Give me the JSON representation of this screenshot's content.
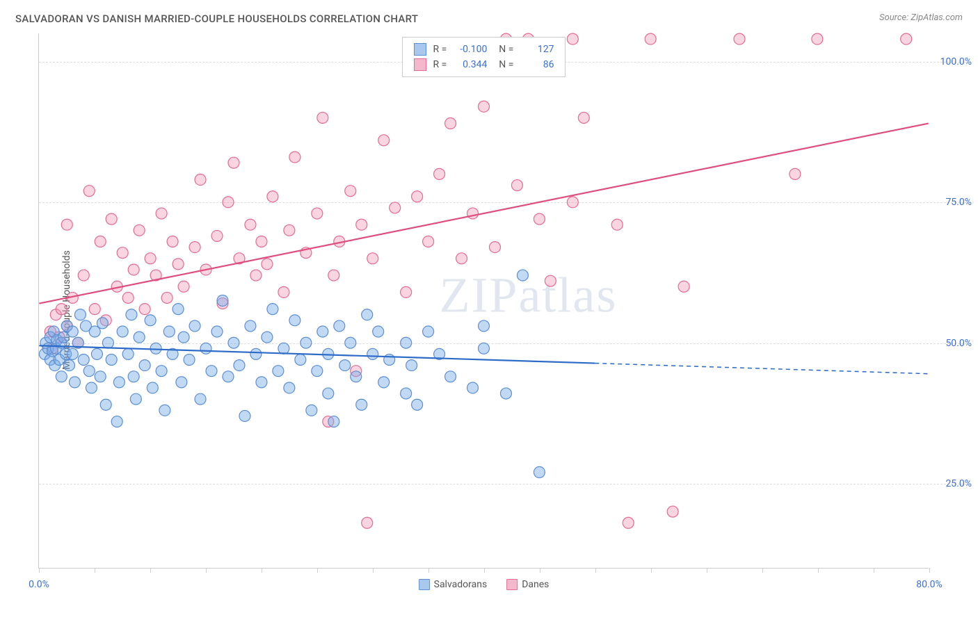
{
  "title": "SALVADORAN VS DANISH MARRIED-COUPLE HOUSEHOLDS CORRELATION CHART",
  "source": "Source: ZipAtlas.com",
  "y_axis_label": "Married-couple Households",
  "watermark": "ZIPatlas",
  "chart": {
    "type": "scatter",
    "background_color": "#ffffff",
    "grid_color": "#dddddd",
    "axis_color": "#cccccc",
    "text_color": "#555555",
    "value_color": "#3b6fd4",
    "xlim": [
      0,
      80
    ],
    "ylim": [
      10,
      105
    ],
    "x_ticks": [
      0,
      5,
      10,
      15,
      20,
      25,
      30,
      35,
      40,
      45,
      50,
      55,
      60,
      65,
      70,
      75,
      80
    ],
    "x_tick_labels": {
      "0": "0.0%",
      "80": "80.0%"
    },
    "y_ticks": [
      25,
      50,
      75,
      100
    ],
    "y_tick_labels": {
      "25": "25.0%",
      "50": "50.0%",
      "75": "75.0%",
      "100": "100.0%"
    },
    "marker_radius": 8,
    "marker_stroke_width": 1.2,
    "line_width": 2.2
  },
  "series": {
    "salvadorans": {
      "label": "Salvadorans",
      "fill": "rgba(120,170,230,0.45)",
      "stroke": "#5a8fd4",
      "line_color": "#2d6bc9",
      "swatch_fill": "#a8c8ed",
      "swatch_border": "#5a8fd4",
      "r": "-0.100",
      "n": "127",
      "trend": {
        "x1": 0,
        "y1": 49.5,
        "x2": 80,
        "y2": 44.5,
        "solid_until_x": 50
      },
      "points": [
        [
          0.5,
          48
        ],
        [
          0.6,
          50
        ],
        [
          0.8,
          49
        ],
        [
          1,
          47
        ],
        [
          1,
          51
        ],
        [
          1.2,
          48.5
        ],
        [
          1.3,
          52
        ],
        [
          1.4,
          46
        ],
        [
          1.5,
          49
        ],
        [
          1.6,
          50.5
        ],
        [
          1.8,
          47
        ],
        [
          2,
          50
        ],
        [
          2,
          44
        ],
        [
          2.2,
          51
        ],
        [
          2.4,
          48
        ],
        [
          2.5,
          53
        ],
        [
          2.7,
          46
        ],
        [
          3,
          52
        ],
        [
          3,
          48
        ],
        [
          3.2,
          43
        ],
        [
          3.5,
          50
        ],
        [
          3.7,
          55
        ],
        [
          4,
          47
        ],
        [
          4.2,
          53
        ],
        [
          4.5,
          45
        ],
        [
          4.7,
          42
        ],
        [
          5,
          52
        ],
        [
          5.2,
          48
        ],
        [
          5.5,
          44
        ],
        [
          5.7,
          53.5
        ],
        [
          6,
          39
        ],
        [
          6.2,
          50
        ],
        [
          6.5,
          47
        ],
        [
          7,
          36
        ],
        [
          7.2,
          43
        ],
        [
          7.5,
          52
        ],
        [
          8,
          48
        ],
        [
          8.3,
          55
        ],
        [
          8.5,
          44
        ],
        [
          8.7,
          40
        ],
        [
          9,
          51
        ],
        [
          9.5,
          46
        ],
        [
          10,
          54
        ],
        [
          10.2,
          42
        ],
        [
          10.5,
          49
        ],
        [
          11,
          45
        ],
        [
          11.3,
          38
        ],
        [
          11.7,
          52
        ],
        [
          12,
          48
        ],
        [
          12.5,
          56
        ],
        [
          12.8,
          43
        ],
        [
          13,
          51
        ],
        [
          13.5,
          47
        ],
        [
          14,
          53
        ],
        [
          14.5,
          40
        ],
        [
          15,
          49
        ],
        [
          15.5,
          45
        ],
        [
          16,
          52
        ],
        [
          16.5,
          57.5
        ],
        [
          17,
          44
        ],
        [
          17.5,
          50
        ],
        [
          18,
          46
        ],
        [
          18.5,
          37
        ],
        [
          19,
          53
        ],
        [
          19.5,
          48
        ],
        [
          20,
          43
        ],
        [
          20.5,
          51
        ],
        [
          21,
          56
        ],
        [
          21.5,
          45
        ],
        [
          22,
          49
        ],
        [
          22.5,
          42
        ],
        [
          23,
          54
        ],
        [
          23.5,
          47
        ],
        [
          24,
          50
        ],
        [
          24.5,
          38
        ],
        [
          25,
          45
        ],
        [
          25.5,
          52
        ],
        [
          26,
          48
        ],
        [
          26,
          41
        ],
        [
          26.5,
          36
        ],
        [
          27,
          53
        ],
        [
          27.5,
          46
        ],
        [
          28,
          50
        ],
        [
          28.5,
          44
        ],
        [
          29,
          39
        ],
        [
          29.5,
          55
        ],
        [
          30,
          48
        ],
        [
          30.5,
          52
        ],
        [
          31,
          43
        ],
        [
          31.5,
          47
        ],
        [
          33,
          50
        ],
        [
          33,
          41
        ],
        [
          33.5,
          46
        ],
        [
          34,
          39
        ],
        [
          35,
          52
        ],
        [
          36,
          48
        ],
        [
          37,
          44
        ],
        [
          39,
          42
        ],
        [
          40,
          53
        ],
        [
          40,
          49
        ],
        [
          42,
          41
        ],
        [
          43.5,
          62
        ],
        [
          45,
          27
        ]
      ]
    },
    "danes": {
      "label": "Danes",
      "fill": "rgba(240,150,180,0.40)",
      "stroke": "#e56a94",
      "line_color": "#e04d7e",
      "swatch_fill": "#f4b8cd",
      "swatch_border": "#e56a94",
      "r": "0.344",
      "n": "86",
      "trend": {
        "x1": 0,
        "y1": 57,
        "x2": 80,
        "y2": 89,
        "solid_until_x": 80
      },
      "points": [
        [
          1,
          52
        ],
        [
          1.2,
          49
        ],
        [
          1.5,
          55
        ],
        [
          1.8,
          51
        ],
        [
          2,
          56
        ],
        [
          2.5,
          53
        ],
        [
          2.5,
          71
        ],
        [
          3,
          58
        ],
        [
          3.5,
          50
        ],
        [
          4,
          62
        ],
        [
          4.5,
          77
        ],
        [
          5,
          56
        ],
        [
          5.5,
          68
        ],
        [
          6,
          54
        ],
        [
          6.5,
          72
        ],
        [
          7,
          60
        ],
        [
          7.5,
          66
        ],
        [
          8,
          58
        ],
        [
          8.5,
          63
        ],
        [
          9,
          70
        ],
        [
          9.5,
          56
        ],
        [
          10,
          65
        ],
        [
          10.5,
          62
        ],
        [
          11,
          73
        ],
        [
          11.5,
          58
        ],
        [
          12,
          68
        ],
        [
          12.5,
          64
        ],
        [
          13,
          60
        ],
        [
          14,
          67
        ],
        [
          14.5,
          79
        ],
        [
          15,
          63
        ],
        [
          16,
          69
        ],
        [
          16.5,
          57
        ],
        [
          17,
          75
        ],
        [
          17.5,
          82
        ],
        [
          18,
          65
        ],
        [
          19,
          71
        ],
        [
          19.5,
          62
        ],
        [
          20,
          68
        ],
        [
          20.5,
          64
        ],
        [
          21,
          76
        ],
        [
          22,
          59
        ],
        [
          22.5,
          70
        ],
        [
          23,
          83
        ],
        [
          24,
          66
        ],
        [
          25,
          73
        ],
        [
          25.5,
          90
        ],
        [
          26,
          36
        ],
        [
          26.5,
          62
        ],
        [
          27,
          68
        ],
        [
          28,
          77
        ],
        [
          28.5,
          45
        ],
        [
          29,
          71
        ],
        [
          29.5,
          18
        ],
        [
          30,
          65
        ],
        [
          31,
          86
        ],
        [
          32,
          74
        ],
        [
          33,
          59
        ],
        [
          34,
          76
        ],
        [
          35,
          68
        ],
        [
          36,
          80
        ],
        [
          37,
          89
        ],
        [
          38,
          65
        ],
        [
          39,
          73
        ],
        [
          40,
          92
        ],
        [
          41,
          67
        ],
        [
          42,
          104
        ],
        [
          43,
          78
        ],
        [
          44,
          104
        ],
        [
          45,
          72
        ],
        [
          46,
          61
        ],
        [
          48,
          75
        ],
        [
          48,
          104
        ],
        [
          49,
          90
        ],
        [
          52,
          71
        ],
        [
          53,
          18
        ],
        [
          55,
          104
        ],
        [
          57,
          20
        ],
        [
          58,
          60
        ],
        [
          63,
          104
        ],
        [
          68,
          80
        ],
        [
          70,
          104
        ],
        [
          78,
          104
        ]
      ]
    }
  },
  "legend_bottom": [
    "salvadorans",
    "danes"
  ],
  "correlation_rows": [
    "salvadorans",
    "danes"
  ]
}
